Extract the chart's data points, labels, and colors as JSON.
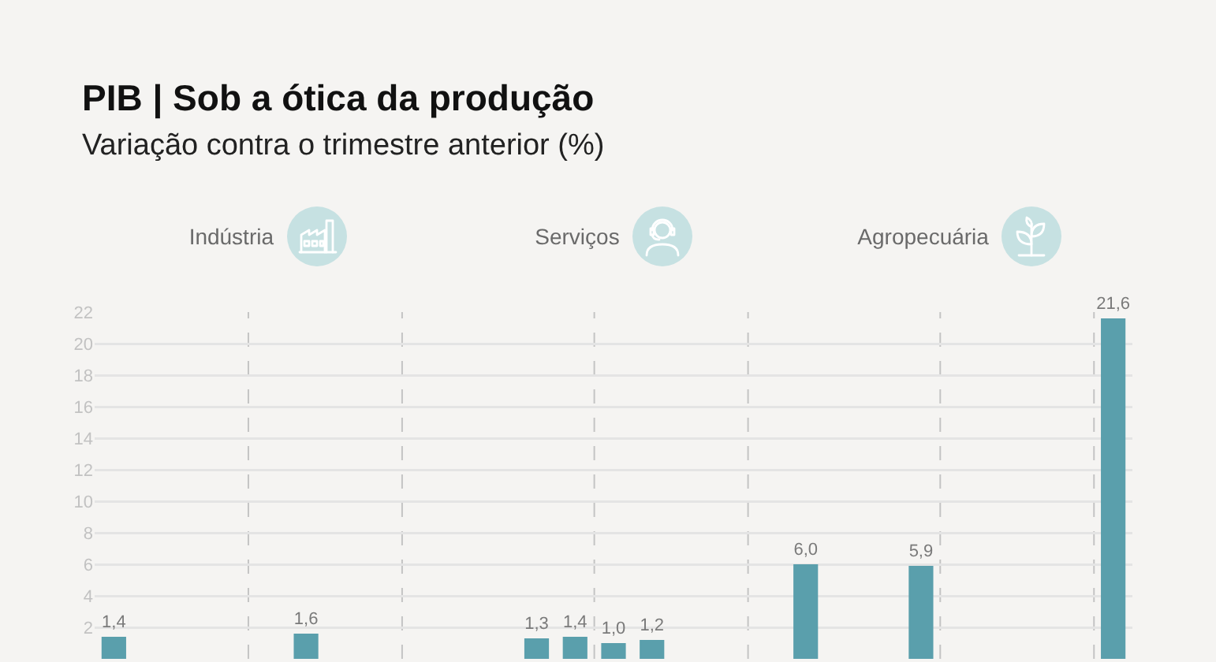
{
  "chart_data": {
    "type": "bar",
    "title": "PIB | Sob a ótica da produção",
    "subtitle": "Variação contra o trimestre anterior (%)",
    "annotations": [
      "Indústria",
      "Serviços",
      "Agropecuária"
    ],
    "categories": [
      null,
      null,
      null,
      null,
      null,
      null,
      null,
      null,
      null,
      null,
      null,
      null,
      null,
      null,
      null,
      null,
      null,
      null,
      null,
      null,
      null,
      null,
      null,
      null,
      null,
      null,
      null
    ],
    "values": [
      1.4,
      null,
      null,
      null,
      null,
      1.6,
      null,
      null,
      null,
      null,
      null,
      1.3,
      1.4,
      1.0,
      1.2,
      null,
      null,
      null,
      6.0,
      null,
      null,
      5.9,
      null,
      null,
      null,
      null,
      21.6
    ],
    "value_labels": [
      "1,4",
      null,
      null,
      null,
      null,
      "1,6",
      null,
      null,
      null,
      null,
      null,
      "1,3",
      "1,4",
      "1,0",
      "1,2",
      null,
      null,
      null,
      "6,0",
      null,
      null,
      "5,9",
      null,
      null,
      null,
      null,
      "21,6"
    ],
    "color": "#5a9fac",
    "ylim": [
      0,
      22
    ],
    "yticks": [
      2,
      4,
      6,
      8,
      10,
      12,
      14,
      16,
      18,
      20,
      22
    ],
    "grid": "y",
    "tick_labels": "y"
  }
}
